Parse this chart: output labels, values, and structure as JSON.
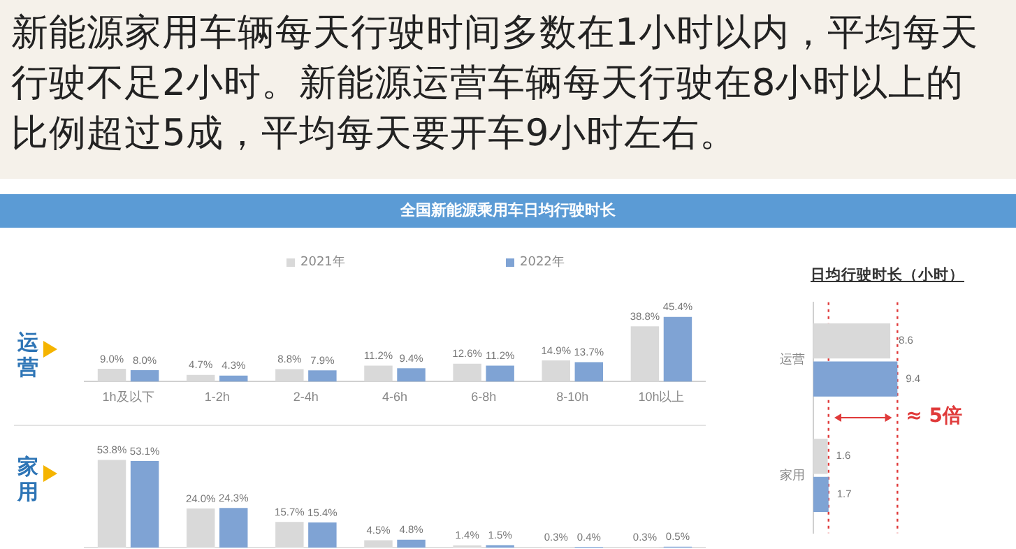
{
  "chart_data": [
    {
      "type": "bar",
      "title": "新能源家用车辆每天行驶时间多数在1小时以内，平均每天行驶不足2小时。新能源运营车辆每天行驶在8小时以上的比例超过5成，平均每天要开车9小时左右。",
      "subtitle": "全国新能源乘用车日均行驶时长",
      "ylabel": "运营",
      "categories": [
        "1h及以下",
        "1-2h",
        "2-4h",
        "4-6h",
        "6-8h",
        "8-10h",
        "10h以上"
      ],
      "legend": "top",
      "tick_labels": "x",
      "series": [
        {
          "name": "2021年",
          "color": "#d9d9d9",
          "values": [
            9.0,
            4.7,
            8.8,
            11.2,
            12.6,
            14.9,
            38.8
          ],
          "value_labels": [
            "9.0%",
            "4.7%",
            "8.8%",
            "11.2%",
            "12.6%",
            "14.9%",
            "38.8%"
          ]
        },
        {
          "name": "2022年",
          "color": "#7fa3d4",
          "values": [
            8.0,
            4.3,
            7.9,
            9.4,
            11.2,
            13.7,
            45.4
          ],
          "value_labels": [
            "8.0%",
            "4.3%",
            "7.9%",
            "9.4%",
            "11.2%",
            "13.7%",
            "45.4%"
          ]
        }
      ]
    },
    {
      "type": "bar",
      "ylabel": "家用",
      "categories": [
        null,
        null,
        null,
        null,
        null,
        null,
        null
      ],
      "tick_labels": false,
      "series": [
        {
          "color": "#d9d9d9",
          "values": [
            53.8,
            24.0,
            15.7,
            4.5,
            1.4,
            0.3,
            0.3
          ],
          "value_labels": [
            "53.8%",
            "24.0%",
            "15.7%",
            "4.5%",
            "1.4%",
            "0.3%",
            "0.3%"
          ]
        },
        {
          "color": "#7fa3d4",
          "values": [
            53.1,
            24.3,
            15.4,
            4.8,
            1.5,
            0.4,
            0.5
          ],
          "value_labels": [
            "53.1%",
            "24.3%",
            "15.4%",
            "4.8%",
            "1.5%",
            "0.4%",
            "0.5%"
          ]
        }
      ]
    },
    {
      "type": "bar",
      "orientation": "horizontal",
      "title": "日均行驶时长（小时）",
      "categories": [
        "运营",
        "家用"
      ],
      "tick_labels": "y",
      "series": [
        {
          "color": "#d9d9d9",
          "values": [
            8.6,
            1.6
          ],
          "value_labels": [
            "8.6",
            "1.6"
          ]
        },
        {
          "color": "#7fa3d4",
          "values": [
            9.4,
            1.7
          ],
          "value_labels": [
            "9.4",
            "1.7"
          ]
        }
      ],
      "ref_lines": [
        {
          "axis": "x",
          "value": 1.7,
          "color": "#e03a3a",
          "line_style": "dotted"
        },
        {
          "axis": "x",
          "value": 9.4,
          "color": "#e03a3a",
          "line_style": "dotted"
        }
      ],
      "annotations": [
        "≈ 5倍"
      ]
    }
  ]
}
